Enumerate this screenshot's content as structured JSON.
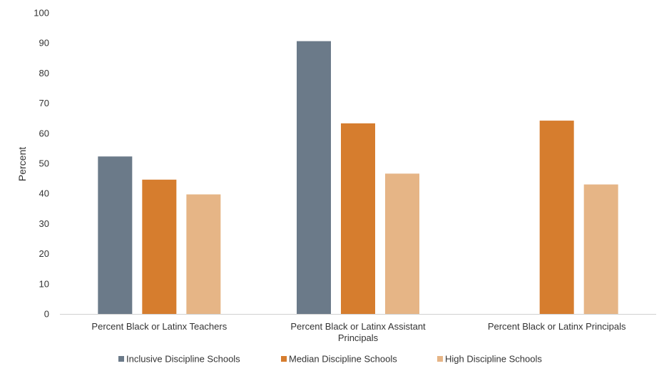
{
  "chart_data": {
    "type": "bar",
    "title": "",
    "xlabel": "",
    "ylabel": "Percent",
    "ylim": [
      0,
      100
    ],
    "yticks": [
      "0",
      "10",
      "20",
      "30",
      "40",
      "50",
      "60",
      "70",
      "80",
      "90",
      "100"
    ],
    "categories": [
      [
        "Percent Black or Latinx Teachers"
      ],
      [
        "Percent Black or Latinx Assistant",
        "Principals"
      ],
      [
        "Percent Black or Latinx Principals"
      ]
    ],
    "series": [
      {
        "name": "Inclusive Discipline Schools",
        "color": "#6b7a89",
        "values": [
          52.3,
          90.6,
          null
        ]
      },
      {
        "name": "Median Discipline Schools",
        "color": "#d67d2e",
        "values": [
          44.6,
          63.3,
          64.2
        ]
      },
      {
        "name": "High Discipline Schools",
        "color": "#e6b586",
        "values": [
          39.7,
          46.6,
          43.0
        ]
      }
    ],
    "legend_position": "bottom"
  }
}
